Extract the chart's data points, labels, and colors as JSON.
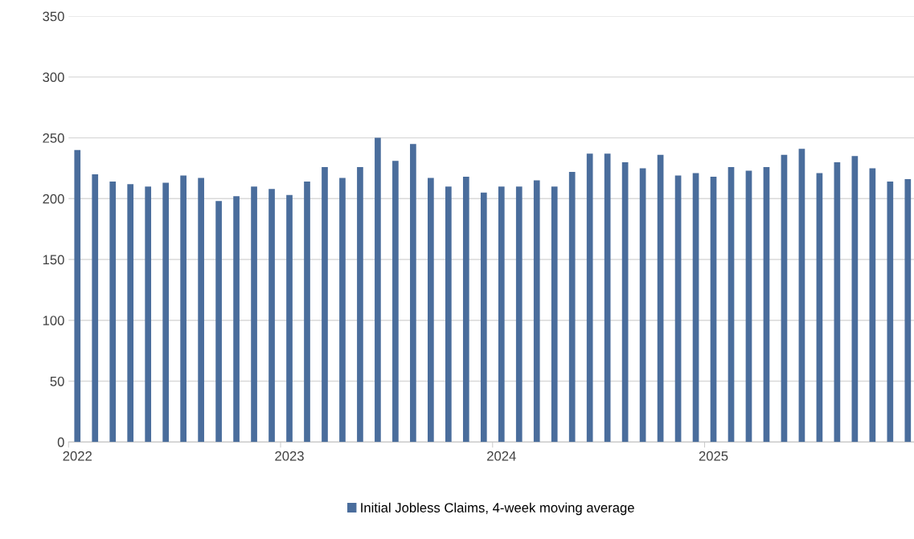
{
  "chart_data": {
    "type": "bar",
    "categories": [
      "2022",
      null,
      null,
      null,
      null,
      null,
      null,
      null,
      null,
      null,
      null,
      null,
      "2023",
      null,
      null,
      null,
      null,
      null,
      null,
      null,
      null,
      null,
      null,
      null,
      "2024",
      null,
      null,
      null,
      null,
      null,
      null,
      null,
      null,
      null,
      null,
      null,
      "2025",
      null,
      null,
      null,
      null,
      null,
      null,
      null,
      null,
      null,
      null,
      null
    ],
    "series": [
      {
        "name": "Initial Jobless Claims, 4-week moving average",
        "color": "#4a6d9c",
        "values": [
          240,
          220,
          214,
          212,
          210,
          213,
          219,
          217,
          198,
          202,
          210,
          208,
          203,
          214,
          226,
          217,
          226,
          250,
          231,
          245,
          217,
          210,
          218,
          205,
          210,
          210,
          215,
          210,
          222,
          237,
          237,
          230,
          225,
          236,
          219,
          221,
          218,
          226,
          223,
          226,
          236,
          241,
          221,
          230,
          235,
          225,
          214,
          216
        ]
      }
    ],
    "ylim": [
      0,
      350
    ],
    "yticks": [
      0,
      50,
      100,
      150,
      200,
      250,
      300,
      350
    ],
    "grid": "y",
    "legend": "bottom"
  }
}
